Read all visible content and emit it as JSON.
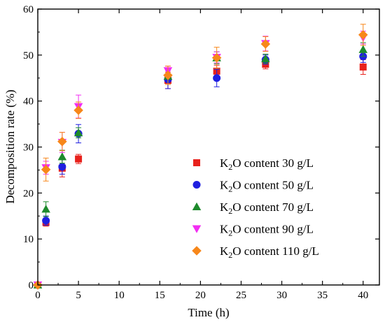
{
  "chart_data": {
    "type": "scatter",
    "title": "",
    "xlabel": "Time (h)",
    "ylabel": "Decomposition rate (%)",
    "xlim": [
      0,
      42
    ],
    "ylim": [
      0,
      60
    ],
    "x_ticks": [
      0,
      5,
      10,
      15,
      20,
      25,
      30,
      35,
      40
    ],
    "y_ticks": [
      0,
      10,
      20,
      30,
      40,
      50,
      60
    ],
    "x_tick_labels": [
      "0",
      "5",
      "10",
      "15",
      "20",
      "25",
      "30",
      "35",
      "40"
    ],
    "y_tick_labels": [
      "0",
      "10",
      "20",
      "30",
      "40",
      "50",
      "60"
    ],
    "grid": false,
    "legend_position": "center-right",
    "series": [
      {
        "name_prefix": "K",
        "name_sub": "2",
        "name_suffix": "O content  30 g/L",
        "marker": "square",
        "color": "#e8211c",
        "x": [
          0,
          1,
          3,
          5,
          16,
          22,
          28,
          40
        ],
        "y": [
          0,
          13.6,
          25.4,
          27.4,
          44.5,
          46.5,
          48.0,
          47.4
        ],
        "err": [
          0,
          0.8,
          1.9,
          1.0,
          1.8,
          1.3,
          1.0,
          1.6
        ]
      },
      {
        "name_prefix": "K",
        "name_sub": "2",
        "name_suffix": "O content  50 g/L",
        "marker": "circle",
        "color": "#1f1fe0",
        "x": [
          0,
          1,
          3,
          5,
          16,
          22,
          28,
          40
        ],
        "y": [
          0,
          14.0,
          25.7,
          32.9,
          44.7,
          45.0,
          49.0,
          49.7
        ],
        "err": [
          0,
          1.0,
          1.6,
          2.0,
          2.0,
          1.9,
          1.0,
          1.3
        ]
      },
      {
        "name_prefix": "K",
        "name_sub": "2",
        "name_suffix": "O content  70 g/L",
        "marker": "triangle-up",
        "color": "#1d8a2c",
        "x": [
          0,
          1,
          3,
          5,
          16,
          22,
          28,
          40
        ],
        "y": [
          0,
          16.5,
          27.9,
          33.1,
          45.4,
          49.4,
          49.2,
          51.2
        ],
        "err": [
          0,
          1.6,
          1.4,
          1.1,
          1.8,
          1.3,
          1.0,
          1.5
        ]
      },
      {
        "name_prefix": "K",
        "name_sub": "2",
        "name_suffix": "O content  90 g/L",
        "marker": "triangle-down",
        "color": "#f22ef2",
        "x": [
          0,
          1,
          3,
          5,
          16,
          22,
          28,
          40
        ],
        "y": [
          0,
          25.5,
          31.0,
          38.8,
          46.6,
          49.5,
          52.5,
          53.8
        ],
        "err": [
          0,
          1.4,
          2.2,
          2.5,
          1.0,
          1.2,
          1.6,
          1.4
        ]
      },
      {
        "name_prefix": "K",
        "name_sub": "2",
        "name_suffix": "O content  110 g/L",
        "marker": "diamond",
        "color": "#f7871a",
        "x": [
          0,
          1,
          3,
          5,
          16,
          22,
          28,
          40
        ],
        "y": [
          0,
          25.1,
          31.2,
          38.0,
          45.6,
          49.4,
          52.4,
          54.4
        ],
        "err": [
          0,
          2.5,
          2.0,
          1.8,
          2.0,
          2.3,
          1.6,
          2.3
        ]
      }
    ]
  }
}
